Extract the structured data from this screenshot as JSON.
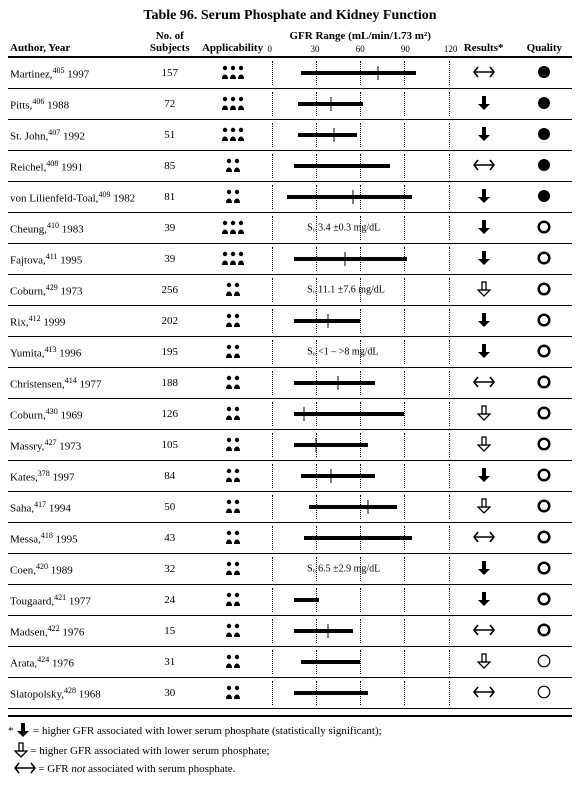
{
  "title": "Table 96. Serum Phosphate and Kidney Function",
  "columns": {
    "author": "Author, Year",
    "subjects": "No. of Subjects",
    "applicability": "Applicability",
    "gfr_range": "GFR Range (mL/min/1.73 m²)",
    "results": "Results*",
    "quality": "Quality"
  },
  "axis": {
    "min": 0,
    "max": 120,
    "ticks": [
      0,
      30,
      60,
      90,
      120
    ]
  },
  "rows": [
    {
      "author": "Martinez,",
      "ref": "405",
      "year": "1997",
      "n": "157",
      "appl": 3,
      "range": [
        20,
        98
      ],
      "marker": 72,
      "result": "noassoc",
      "quality": "solid"
    },
    {
      "author": "Pitts,",
      "ref": "406",
      "year": "1988",
      "n": "72",
      "appl": 3,
      "range": [
        18,
        62
      ],
      "marker": 40,
      "result": "sig",
      "quality": "solid"
    },
    {
      "author": "St. John,",
      "ref": "407",
      "year": "1992",
      "n": "51",
      "appl": 3,
      "range": [
        18,
        58
      ],
      "marker": 42,
      "result": "sig",
      "quality": "solid"
    },
    {
      "author": "Reichel,",
      "ref": "408",
      "year": "1991",
      "n": "85",
      "appl": 2,
      "range": [
        15,
        80
      ],
      "marker": null,
      "result": "noassoc",
      "quality": "solid"
    },
    {
      "author": "von Lilienfeld-Toal,",
      "ref": "409",
      "year": "1982",
      "n": "81",
      "appl": 2,
      "range": [
        10,
        95
      ],
      "marker": 55,
      "result": "sig",
      "quality": "solid"
    },
    {
      "author": "Cheung,",
      "ref": "410",
      "year": "1983",
      "n": "39",
      "appl": 3,
      "text": "Sₒ 3.4 ±0.3 mg/dL",
      "result": "sig",
      "quality": "open"
    },
    {
      "author": "Fajtova,",
      "ref": "411",
      "year": "1995",
      "n": "39",
      "appl": 3,
      "range": [
        15,
        92
      ],
      "marker": 50,
      "result": "sig",
      "quality": "open"
    },
    {
      "author": "Coburn,",
      "ref": "429",
      "year": "1973",
      "n": "256",
      "appl": 2,
      "text": "Sₒ 11.1 ±7.6 mg/dL",
      "result": "nonsig",
      "quality": "open"
    },
    {
      "author": "Rix,",
      "ref": "412",
      "year": "1999",
      "n": "202",
      "appl": 2,
      "range": [
        15,
        60
      ],
      "marker": 38,
      "result": "sig",
      "quality": "open"
    },
    {
      "author": "Yumita,",
      "ref": "413",
      "year": "1996",
      "n": "195",
      "appl": 2,
      "text": "Sₒ <1 – >8 mg/dL",
      "result": "sig",
      "quality": "open"
    },
    {
      "author": "Christensen,",
      "ref": "414",
      "year": "1977",
      "n": "188",
      "appl": 2,
      "range": [
        15,
        70
      ],
      "marker": 45,
      "result": "noassoc",
      "quality": "open"
    },
    {
      "author": "Coburn,",
      "ref": "430",
      "year": "1969",
      "n": "126",
      "appl": 2,
      "range": [
        15,
        90
      ],
      "marker": 22,
      "result": "nonsig",
      "quality": "open"
    },
    {
      "author": "Massry,",
      "ref": "427",
      "year": "1973",
      "n": "105",
      "appl": 2,
      "range": [
        15,
        65
      ],
      "marker": 30,
      "result": "nonsig",
      "quality": "open"
    },
    {
      "author": "Kates,",
      "ref": "378",
      "year": "1997",
      "n": "84",
      "appl": 2,
      "range": [
        20,
        70
      ],
      "marker": 40,
      "result": "sig",
      "quality": "open"
    },
    {
      "author": "Saha,",
      "ref": "417",
      "year": "1994",
      "n": "50",
      "appl": 2,
      "range": [
        25,
        85
      ],
      "marker": 65,
      "result": "nonsig",
      "quality": "open"
    },
    {
      "author": "Messa,",
      "ref": "418",
      "year": "1995",
      "n": "43",
      "appl": 2,
      "range": [
        22,
        95
      ],
      "marker": null,
      "result": "noassoc",
      "quality": "open"
    },
    {
      "author": "Coen,",
      "ref": "420",
      "year": "1989",
      "n": "32",
      "appl": 2,
      "text": "Sₒ 6.5 ±2.9 mg/dL",
      "result": "sig",
      "quality": "open"
    },
    {
      "author": "Tougaard,",
      "ref": "421",
      "year": "1977",
      "n": "24",
      "appl": 2,
      "range": [
        15,
        32
      ],
      "marker": null,
      "result": "sig",
      "quality": "open"
    },
    {
      "author": "Madsen,",
      "ref": "422",
      "year": "1976",
      "n": "15",
      "appl": 2,
      "range": [
        15,
        55
      ],
      "marker": 38,
      "result": "noassoc",
      "quality": "open"
    },
    {
      "author": "Arata,",
      "ref": "424",
      "year": "1976",
      "n": "31",
      "appl": 2,
      "range": [
        20,
        60
      ],
      "marker": null,
      "result": "nonsig",
      "quality": "empty"
    },
    {
      "author": "Slatopolsky,",
      "ref": "428",
      "year": "1968",
      "n": "30",
      "appl": 2,
      "range": [
        15,
        65
      ],
      "marker": null,
      "result": "noassoc",
      "quality": "empty"
    }
  ],
  "footnotes": [
    "= higher GFR associated with lower serum phosphate (statistically significant);",
    "= higher GFR associated with lower serum phosphate;",
    "= GFR not associated with serum phosphate."
  ],
  "footsymbols": [
    "sig",
    "nonsig",
    "noassoc"
  ],
  "footprefix": "* "
}
